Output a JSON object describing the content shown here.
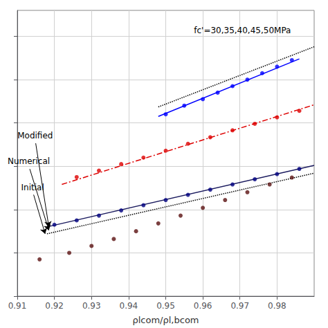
{
  "chart_data": {
    "type": "line",
    "xlabel": "ρlcom/ρl,bcom",
    "xlim": [
      0.91,
      0.99
    ],
    "xticks": [
      0.91,
      0.92,
      0.93,
      0.94,
      0.95,
      0.96,
      0.97,
      0.98
    ],
    "ylim": [
      0.3,
      0.96
    ],
    "yticks": [
      0.3,
      0.4,
      0.5,
      0.6,
      0.7,
      0.8,
      0.9
    ],
    "grid": true,
    "tick_labels": "x",
    "series": [
      {
        "type": "line",
        "color": "#0000ff",
        "line_style": "solid",
        "x": [
          0.948,
          0.986
        ],
        "values": [
          0.715,
          0.848
        ]
      },
      {
        "type": "scatter",
        "color": "#0000ff",
        "marker": "circle",
        "x": [
          0.95,
          0.955,
          0.96,
          0.964,
          0.968,
          0.972,
          0.976,
          0.98,
          0.984
        ],
        "values": [
          0.72,
          0.74,
          0.755,
          0.77,
          0.785,
          0.8,
          0.815,
          0.83,
          0.845
        ]
      },
      {
        "type": "line",
        "color": "#000000",
        "line_style": "dotted",
        "x": [
          0.948,
          0.99
        ],
        "values": [
          0.737,
          0.876
        ]
      },
      {
        "type": "line",
        "color": "#dd0000",
        "line_style": "dashdot",
        "x": [
          0.922,
          0.99
        ],
        "values": [
          0.558,
          0.742
        ]
      },
      {
        "type": "scatter",
        "color": "#dd0000",
        "marker": "circle",
        "x": [
          0.926,
          0.932,
          0.938,
          0.944,
          0.95,
          0.956,
          0.962,
          0.968,
          0.974,
          0.98,
          0.986
        ],
        "values": [
          0.575,
          0.59,
          0.605,
          0.62,
          0.636,
          0.652,
          0.667,
          0.683,
          0.698,
          0.713,
          0.728
        ]
      },
      {
        "type": "line",
        "color": "#1a1a5e",
        "line_style": "solid",
        "x": [
          0.918,
          0.99
        ],
        "values": [
          0.46,
          0.602
        ]
      },
      {
        "type": "scatter",
        "color": "#000080",
        "marker": "circle",
        "x": [
          0.92,
          0.926,
          0.932,
          0.938,
          0.944,
          0.95,
          0.956,
          0.962,
          0.968,
          0.974,
          0.98,
          0.986
        ],
        "values": [
          0.465,
          0.475,
          0.486,
          0.498,
          0.51,
          0.522,
          0.534,
          0.546,
          0.558,
          0.57,
          0.582,
          0.594
        ]
      },
      {
        "type": "line",
        "color": "#000000",
        "line_style": "dotted",
        "x": [
          0.918,
          0.99
        ],
        "values": [
          0.444,
          0.584
        ]
      },
      {
        "type": "scatter",
        "color": "#5a1010",
        "marker": "circle",
        "x": [
          0.916,
          0.924,
          0.93,
          0.936,
          0.942,
          0.948,
          0.954,
          0.96,
          0.966,
          0.972,
          0.978,
          0.984
        ],
        "values": [
          0.385,
          0.4,
          0.416,
          0.432,
          0.45,
          0.468,
          0.486,
          0.504,
          0.522,
          0.54,
          0.558,
          0.574
        ]
      }
    ],
    "annotations": [
      {
        "text": "Modified",
        "x": 0.9185,
        "y": 0.46
      },
      {
        "text": "Numerical",
        "x": 0.9185,
        "y": 0.452
      },
      {
        "text": "Initial",
        "x": 0.9175,
        "y": 0.444
      },
      {
        "text": "fc'=30,35,40,45,50MPa"
      }
    ]
  }
}
